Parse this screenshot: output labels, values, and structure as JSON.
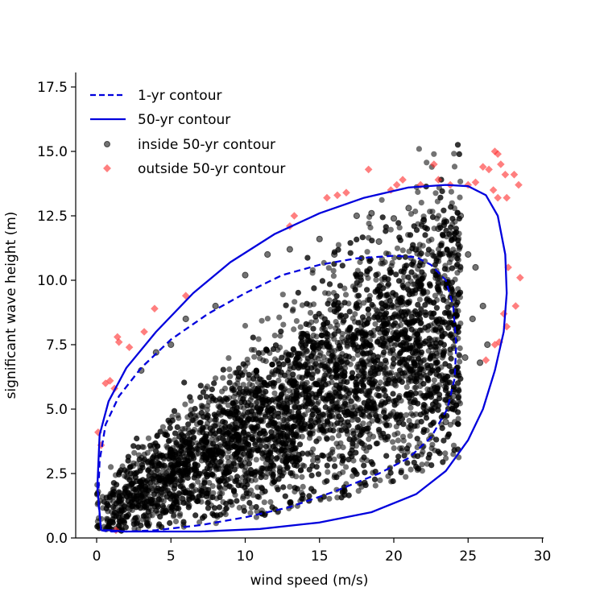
{
  "chart_data": {
    "type": "scatter",
    "xlabel": "wind speed (m/s)",
    "ylabel": "significant wave height (m)",
    "xlim": [
      -1.5,
      30
    ],
    "ylim": [
      0,
      18
    ],
    "xticks": [
      0,
      5,
      10,
      15,
      20,
      25,
      30
    ],
    "yticks": [
      0.0,
      2.5,
      5.0,
      7.5,
      10.0,
      12.5,
      15.0,
      17.5
    ],
    "xtick_labels": [
      "0",
      "5",
      "10",
      "15",
      "20",
      "25",
      "30"
    ],
    "ytick_labels": [
      "0.0",
      "2.5",
      "5.0",
      "7.5",
      "10.0",
      "12.5",
      "15.0",
      "17.5"
    ],
    "grid": false,
    "legend_position": "top-left",
    "colors": {
      "contour": "#0000dd",
      "inside": "#000000",
      "outside": "#ff2a2a"
    },
    "series": [
      {
        "name": "1-yr contour",
        "kind": "line",
        "style": "dashed",
        "points": [
          [
            0.3,
            0.3
          ],
          [
            0.1,
            1.5
          ],
          [
            0.2,
            3.0
          ],
          [
            0.6,
            4.4
          ],
          [
            1.5,
            5.5
          ],
          [
            3.0,
            6.6
          ],
          [
            5.0,
            7.7
          ],
          [
            7.5,
            8.7
          ],
          [
            10.0,
            9.5
          ],
          [
            12.5,
            10.2
          ],
          [
            15.0,
            10.6
          ],
          [
            17.5,
            10.85
          ],
          [
            20.0,
            10.95
          ],
          [
            21.5,
            10.9
          ],
          [
            22.5,
            10.6
          ],
          [
            23.5,
            10.0
          ],
          [
            24.0,
            9.0
          ],
          [
            24.2,
            7.5
          ],
          [
            24.1,
            6.2
          ],
          [
            23.6,
            5.0
          ],
          [
            22.5,
            3.9
          ],
          [
            21.0,
            3.1
          ],
          [
            19.0,
            2.5
          ],
          [
            16.0,
            1.8
          ],
          [
            13.0,
            1.2
          ],
          [
            10.0,
            0.8
          ],
          [
            7.0,
            0.5
          ],
          [
            4.0,
            0.3
          ],
          [
            2.0,
            0.25
          ],
          [
            0.8,
            0.25
          ],
          [
            0.3,
            0.3
          ]
        ]
      },
      {
        "name": "50-yr contour",
        "kind": "line",
        "style": "solid",
        "points": [
          [
            0.3,
            0.3
          ],
          [
            0.05,
            2.0
          ],
          [
            0.2,
            4.0
          ],
          [
            0.8,
            5.3
          ],
          [
            2.0,
            6.6
          ],
          [
            4.0,
            8.0
          ],
          [
            6.5,
            9.5
          ],
          [
            9.0,
            10.7
          ],
          [
            12.0,
            11.8
          ],
          [
            15.0,
            12.6
          ],
          [
            18.0,
            13.2
          ],
          [
            21.0,
            13.6
          ],
          [
            23.5,
            13.7
          ],
          [
            25.0,
            13.65
          ],
          [
            26.2,
            13.3
          ],
          [
            27.0,
            12.5
          ],
          [
            27.5,
            11.0
          ],
          [
            27.6,
            9.5
          ],
          [
            27.4,
            8.0
          ],
          [
            26.8,
            6.5
          ],
          [
            26.0,
            5.0
          ],
          [
            25.0,
            3.8
          ],
          [
            23.5,
            2.6
          ],
          [
            21.5,
            1.7
          ],
          [
            18.5,
            1.0
          ],
          [
            15.0,
            0.6
          ],
          [
            11.0,
            0.35
          ],
          [
            7.0,
            0.25
          ],
          [
            4.0,
            0.25
          ],
          [
            2.0,
            0.25
          ],
          [
            0.8,
            0.3
          ],
          [
            0.3,
            0.3
          ]
        ]
      },
      {
        "name": "inside 50-yr contour",
        "kind": "scatter",
        "points": [
          [
            13.0,
            11.2
          ],
          [
            15.0,
            11.6
          ],
          [
            17.5,
            12.5
          ],
          [
            18.5,
            12.6
          ],
          [
            20.0,
            12.4
          ],
          [
            21.0,
            12.8
          ],
          [
            22.0,
            12.3
          ],
          [
            23.0,
            12.0
          ],
          [
            24.5,
            12.5
          ],
          [
            25.0,
            11.0
          ],
          [
            25.5,
            10.5
          ],
          [
            26.0,
            9.0
          ],
          [
            26.3,
            7.5
          ],
          [
            25.8,
            6.8
          ],
          [
            24.0,
            5.5
          ],
          [
            23.5,
            4.5
          ],
          [
            8.0,
            9.0
          ],
          [
            6.0,
            8.5
          ],
          [
            5.0,
            7.5
          ],
          [
            4.0,
            7.2
          ],
          [
            3.0,
            6.5
          ],
          [
            10.0,
            10.2
          ],
          [
            11.5,
            11.0
          ],
          [
            16.0,
            11.0
          ],
          [
            19.0,
            11.5
          ],
          [
            21.5,
            11.2
          ],
          [
            25.3,
            8.5
          ],
          [
            24.8,
            7.0
          ]
        ]
      },
      {
        "name": "outside 50-yr contour",
        "kind": "scatter",
        "points": [
          [
            0.1,
            4.1
          ],
          [
            0.3,
            3.6
          ],
          [
            0.6,
            6.0
          ],
          [
            0.9,
            6.1
          ],
          [
            1.2,
            5.8
          ],
          [
            1.5,
            7.6
          ],
          [
            1.4,
            7.8
          ],
          [
            1.3,
            0.3
          ],
          [
            2.2,
            7.4
          ],
          [
            3.2,
            8.0
          ],
          [
            3.9,
            8.9
          ],
          [
            6.0,
            9.4
          ],
          [
            13.0,
            12.1
          ],
          [
            13.3,
            12.5
          ],
          [
            15.5,
            13.2
          ],
          [
            16.2,
            13.3
          ],
          [
            16.8,
            13.4
          ],
          [
            18.3,
            14.3
          ],
          [
            19.8,
            13.5
          ],
          [
            20.2,
            13.7
          ],
          [
            20.6,
            13.9
          ],
          [
            21.8,
            13.7
          ],
          [
            22.7,
            14.5
          ],
          [
            23.0,
            13.9
          ],
          [
            23.8,
            13.7
          ],
          [
            25.0,
            13.7
          ],
          [
            25.5,
            13.8
          ],
          [
            26.0,
            14.4
          ],
          [
            26.4,
            14.3
          ],
          [
            26.8,
            15.0
          ],
          [
            27.0,
            14.9
          ],
          [
            27.2,
            14.5
          ],
          [
            27.5,
            14.1
          ],
          [
            26.7,
            13.5
          ],
          [
            27.0,
            13.2
          ],
          [
            27.6,
            13.2
          ],
          [
            28.1,
            14.1
          ],
          [
            28.4,
            13.7
          ],
          [
            27.7,
            10.5
          ],
          [
            28.5,
            10.1
          ],
          [
            27.4,
            8.7
          ],
          [
            28.2,
            9.0
          ],
          [
            27.6,
            8.2
          ],
          [
            27.1,
            7.6
          ],
          [
            26.8,
            7.5
          ],
          [
            26.2,
            6.9
          ]
        ]
      }
    ]
  }
}
